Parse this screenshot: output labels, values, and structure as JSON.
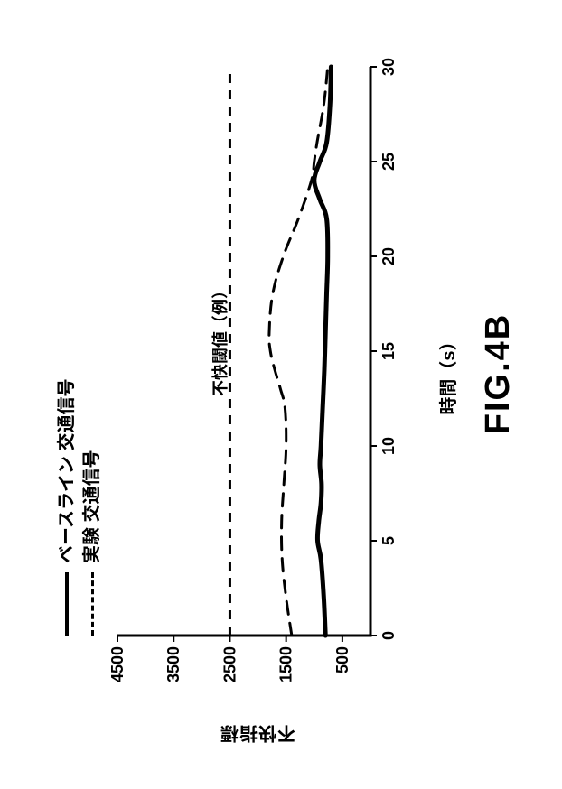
{
  "figure": {
    "caption": "FIG.4B",
    "xlabel": "時間（s）",
    "ylabel": "不快指標",
    "threshold_label": "不快閾値（例）",
    "type": "line",
    "xlim": [
      0,
      30
    ],
    "ylim": [
      0,
      4500
    ],
    "xtick_step": 5,
    "ytick_step": 1000,
    "ytick_start": 500,
    "background_color": "#ffffff",
    "axis_color": "#000000",
    "axis_linewidth": 3,
    "label_fontsize": 20,
    "tick_fontsize": 18,
    "caption_fontsize": 38,
    "threshold": {
      "value": 2500,
      "color": "#000000",
      "dash": "10 8",
      "linewidth": 3
    },
    "legend": {
      "items": [
        {
          "label": "ベースライン 交通信号",
          "dash": "none",
          "linewidth": 4,
          "color": "#000000"
        },
        {
          "label": "実験 交通信号",
          "dash": "12 8",
          "linewidth": 3,
          "color": "#000000"
        }
      ]
    },
    "series": [
      {
        "name": "baseline",
        "color": "#000000",
        "dash": "none",
        "linewidth": 5,
        "x": [
          0,
          2,
          4,
          5,
          6,
          7,
          8,
          9,
          10,
          12,
          14,
          16,
          18,
          20,
          22,
          23,
          24,
          25,
          26,
          28,
          30
        ],
        "y": [
          800,
          830,
          880,
          940,
          920,
          880,
          870,
          900,
          880,
          850,
          820,
          800,
          780,
          760,
          780,
          900,
          1000,
          900,
          780,
          720,
          700
        ]
      },
      {
        "name": "experiment",
        "color": "#000000",
        "dash": "14 10",
        "linewidth": 3,
        "x": [
          0,
          2,
          4,
          6,
          8,
          10,
          12,
          13,
          14,
          15,
          16,
          18,
          20,
          22,
          24,
          25,
          26,
          28,
          30
        ],
        "y": [
          1400,
          1500,
          1570,
          1580,
          1540,
          1500,
          1520,
          1600,
          1700,
          1780,
          1800,
          1740,
          1550,
          1280,
          1050,
          1000,
          950,
          830,
          760
        ]
      }
    ]
  }
}
